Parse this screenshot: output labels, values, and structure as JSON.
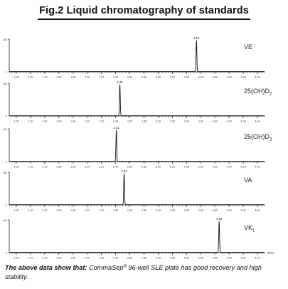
{
  "figure": {
    "title": "Fig.2  Liquid chromatography of standards"
  },
  "note": {
    "lead": "The above data show that:",
    "brand": "CommaSep",
    "brand_mark": "®",
    "rest": " 96-well SLE plate has good recovery and high stability."
  },
  "chart_data": {
    "type": "line",
    "x_unit_label": "Time",
    "x_ticks": [
      "1.00",
      "1.20",
      "1.40",
      "1.60",
      "1.80",
      "2.00",
      "2.20",
      "2.40",
      "2.60",
      "2.80",
      "3.00",
      "3.20",
      "3.40",
      "3.60",
      "3.80",
      "4.00",
      "4.20",
      "4.40"
    ],
    "xlim": [
      0.9,
      4.5
    ],
    "y_max_label": "100",
    "y_min_label": "0",
    "ylim": [
      0,
      100
    ],
    "series": [
      {
        "name": "VE",
        "label_main": "VE",
        "label_sub": "",
        "peak_rt": 3.54,
        "peak_label": "3.54",
        "peak_height": 100
      },
      {
        "name": "25(OH)D2",
        "label_main": "25(OH)D",
        "label_sub": "2",
        "peak_rt": 2.46,
        "peak_label": "2.46",
        "peak_height": 100
      },
      {
        "name": "25(OH)D3",
        "label_main": "25(OH)D",
        "label_sub": "3",
        "peak_rt": 2.41,
        "peak_label": "2.41",
        "peak_height": 100
      },
      {
        "name": "VA",
        "label_main": "VA",
        "label_sub": "",
        "peak_rt": 2.52,
        "peak_label": "2.52",
        "peak_height": 100
      },
      {
        "name": "VK1",
        "label_main": "VK",
        "label_sub": "1",
        "peak_rt": 3.86,
        "peak_label": "3.86",
        "peak_height": 100
      }
    ]
  }
}
